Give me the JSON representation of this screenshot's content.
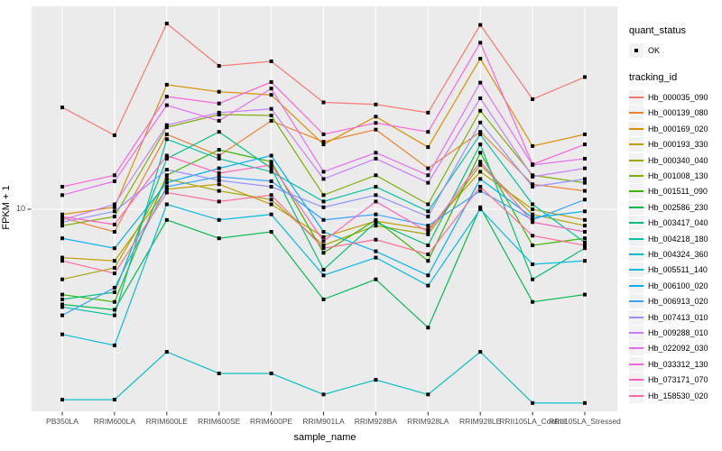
{
  "chart": {
    "xlabel": "sample_name",
    "ylabel": "FPKM + 1",
    "y_tick_label": "10",
    "legend": {
      "quant_status_title": "quant_status",
      "quant_status_label": "OK",
      "tracking_title": "tracking_id"
    },
    "colors": {
      "panel_bg": "#EBEBEB",
      "grid": "#FFFFFF",
      "axis_text": "#4D4D4D",
      "point": "#000000",
      "legend_key_bg": "#F2F2F2"
    }
  },
  "chart_data": {
    "type": "line",
    "title": "",
    "xlabel": "sample_name",
    "ylabel": "FPKM + 1",
    "yscale": "log10",
    "y_ticks": [
      10
    ],
    "ylim": [
      1.3,
      70
    ],
    "grid": true,
    "legend_position": "right",
    "point_shape": "filled-square-black",
    "categories": [
      "PB350LA",
      "RRIM600LA",
      "RRIM600LE",
      "RRIM600SE",
      "RRIM600PE",
      "RRIM901LA",
      "RRIM928BA",
      "RRIM928LA",
      "RRIM928LE",
      "RRII105LA_Control",
      "RRII105LA_Stressed"
    ],
    "quant_status_values": [
      "OK"
    ],
    "series": [
      {
        "name": "Hb_000035_090",
        "color": "#F8766D",
        "values": [
          27.4,
          20.8,
          62.8,
          41.3,
          43.2,
          28.8,
          28.2,
          26.0,
          62.0,
          29.7,
          37.0
        ]
      },
      {
        "name": "Hb_000139_080",
        "color": "#EA8331",
        "values": [
          9.2,
          8.0,
          21.0,
          17.0,
          24.0,
          19.5,
          22.0,
          15.0,
          21.5,
          12.8,
          12.0
        ]
      },
      {
        "name": "Hb_000169_020",
        "color": "#D89000",
        "values": [
          9.5,
          10.2,
          34.3,
          32.0,
          31.0,
          19.0,
          25.0,
          18.5,
          44.4,
          18.7,
          21.0
        ]
      },
      {
        "name": "Hb_000193_330",
        "color": "#C09B00",
        "values": [
          6.2,
          6.0,
          12.2,
          12.8,
          10.5,
          7.6,
          8.9,
          8.2,
          14.5,
          10.0,
          9.0
        ]
      },
      {
        "name": "Hb_000340_040",
        "color": "#A3A500",
        "values": [
          5.0,
          5.6,
          13.5,
          12.0,
          11.0,
          7.0,
          8.5,
          7.8,
          15.5,
          9.5,
          8.5
        ]
      },
      {
        "name": "Hb_001008_130",
        "color": "#7CAE00",
        "values": [
          8.5,
          9.3,
          22.5,
          25.5,
          25.3,
          11.5,
          14.0,
          10.5,
          26.5,
          14.0,
          13.0
        ]
      },
      {
        "name": "Hb_001511_090",
        "color": "#39B600",
        "values": [
          4.3,
          4.0,
          14.0,
          18.0,
          16.0,
          6.5,
          9.0,
          6.0,
          17.5,
          7.0,
          7.5
        ]
      },
      {
        "name": "Hb_002586_230",
        "color": "#00BB4E",
        "values": [
          3.9,
          3.7,
          9.0,
          7.5,
          8.0,
          4.1,
          5.0,
          3.1,
          10.2,
          4.0,
          4.3
        ]
      },
      {
        "name": "Hb_003417_040",
        "color": "#00BF7D",
        "values": [
          4.1,
          4.4,
          16.5,
          21.5,
          15.0,
          5.5,
          8.8,
          7.0,
          19.0,
          5.0,
          6.8
        ]
      },
      {
        "name": "Hb_004218_180",
        "color": "#00C1A3",
        "values": [
          3.8,
          3.5,
          20.0,
          16.5,
          14.5,
          10.8,
          12.5,
          9.8,
          21.0,
          10.5,
          7.2
        ]
      },
      {
        "name": "Hb_004324_360",
        "color": "#00BFC4",
        "values": [
          1.52,
          1.52,
          2.44,
          1.97,
          1.97,
          1.6,
          1.85,
          1.6,
          2.44,
          1.47,
          1.47
        ]
      },
      {
        "name": "Hb_005511_140",
        "color": "#00BAE0",
        "values": [
          2.9,
          2.6,
          10.5,
          9.0,
          9.5,
          5.2,
          6.2,
          4.7,
          10.0,
          5.8,
          6.0
        ]
      },
      {
        "name": "Hb_006100_020",
        "color": "#00B0F6",
        "values": [
          7.5,
          6.8,
          13.0,
          15.0,
          17.0,
          8.0,
          6.6,
          5.2,
          13.5,
          9.2,
          9.8
        ]
      },
      {
        "name": "Hb_006913_020",
        "color": "#35A2FF",
        "values": [
          3.5,
          4.6,
          12.5,
          13.8,
          13.2,
          9.0,
          9.5,
          8.5,
          12.0,
          9.0,
          11.0
        ]
      },
      {
        "name": "Hb_007413_010",
        "color": "#9590FF",
        "values": [
          8.8,
          9.8,
          14.8,
          13.3,
          12.5,
          10.2,
          11.5,
          9.3,
          23.6,
          12.5,
          13.5
        ]
      },
      {
        "name": "Hb_009288_010",
        "color": "#C77CFF",
        "values": [
          9.0,
          10.5,
          23.0,
          26.0,
          27.0,
          13.5,
          16.5,
          13.0,
          30.0,
          13.8,
          15.0
        ]
      },
      {
        "name": "Hb_022092_030",
        "color": "#E76BF3",
        "values": [
          11.5,
          13.2,
          28.0,
          24.0,
          33.0,
          14.5,
          17.5,
          14.0,
          35.0,
          15.5,
          16.5
        ]
      },
      {
        "name": "Hb_033312_130",
        "color": "#FA62DB",
        "values": [
          12.5,
          14.0,
          30.5,
          28.5,
          35.2,
          21.0,
          23.5,
          21.5,
          52.0,
          15.6,
          19.0
        ]
      },
      {
        "name": "Hb_073171_070",
        "color": "#FF62BC",
        "values": [
          9.3,
          8.6,
          17.0,
          14.3,
          15.5,
          7.3,
          10.8,
          8.0,
          16.0,
          8.8,
          8.0
        ]
      },
      {
        "name": "Hb_158530_020",
        "color": "#FF6A98",
        "values": [
          6.0,
          5.3,
          11.8,
          10.8,
          11.5,
          6.8,
          7.4,
          6.4,
          12.5,
          7.7,
          7.0
        ]
      }
    ]
  }
}
